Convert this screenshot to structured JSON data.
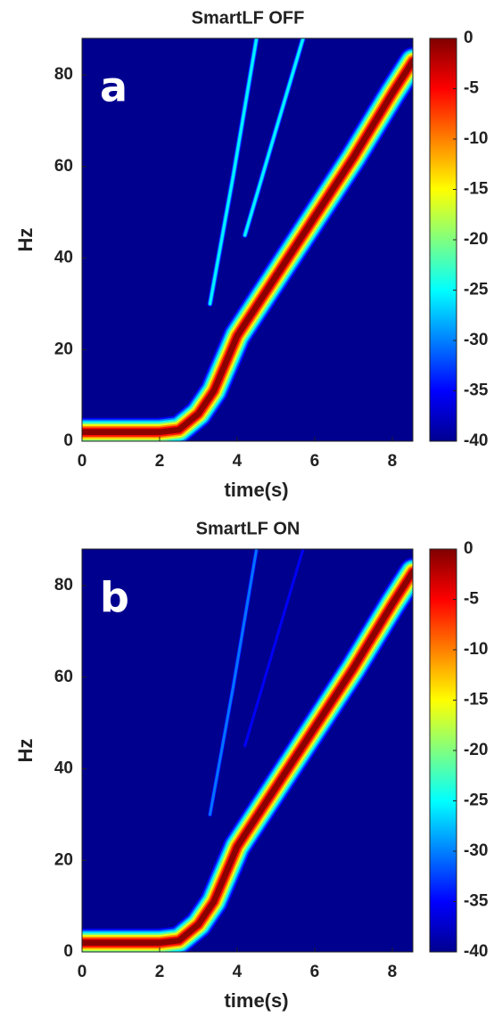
{
  "chart_data": [
    {
      "type": "spectrogram",
      "title": "SmartLF OFF",
      "panel_label": "a",
      "xlabel": "time(s)",
      "ylabel": "Hz",
      "xlim": [
        0,
        8.53
      ],
      "ylim": [
        0,
        88
      ],
      "xticks": [
        0,
        2,
        4,
        6,
        8
      ],
      "yticks": [
        0,
        20,
        40,
        60,
        80
      ],
      "clim": [
        -40,
        0
      ],
      "cticks": [
        0,
        -5,
        -10,
        -15,
        -20,
        -25,
        -30,
        -35,
        -40
      ],
      "colormap": [
        "#00008f",
        "#0000ff",
        "#0080ff",
        "#00ffff",
        "#80ff80",
        "#ffff00",
        "#ff8000",
        "#ff0000",
        "#800000"
      ],
      "series": [
        {
          "x": [
            0,
            1,
            2,
            2.5,
            3,
            3.4,
            4,
            5,
            6,
            7,
            8,
            8.53
          ],
          "values": [
            2,
            2,
            2,
            2.5,
            6,
            11,
            23,
            36,
            49,
            62,
            76,
            83
          ],
          "level": 0
        },
        {
          "x": [
            3.3,
            3.9,
            4.5
          ],
          "values": [
            30,
            58,
            88
          ],
          "level": -25
        },
        {
          "x": [
            4.2,
            5.0,
            5.7
          ],
          "values": [
            45,
            68,
            88
          ],
          "level": -27
        }
      ]
    },
    {
      "type": "spectrogram",
      "title": "SmartLF ON",
      "panel_label": "b",
      "xlabel": "time(s)",
      "ylabel": "Hz",
      "xlim": [
        0,
        8.53
      ],
      "ylim": [
        0,
        88
      ],
      "xticks": [
        0,
        2,
        4,
        6,
        8
      ],
      "yticks": [
        0,
        20,
        40,
        60,
        80
      ],
      "clim": [
        -40,
        0
      ],
      "cticks": [
        0,
        -5,
        -10,
        -15,
        -20,
        -25,
        -30,
        -35,
        -40
      ],
      "colormap": [
        "#00008f",
        "#0000ff",
        "#0080ff",
        "#00ffff",
        "#80ff80",
        "#ffff00",
        "#ff8000",
        "#ff0000",
        "#800000"
      ],
      "series": [
        {
          "x": [
            0,
            1,
            2,
            2.5,
            3,
            3.4,
            4,
            5,
            6,
            7,
            8,
            8.53
          ],
          "values": [
            2,
            2,
            2,
            2.5,
            6,
            11,
            23,
            36,
            49,
            62,
            76,
            83
          ],
          "level": 0
        },
        {
          "x": [
            3.3,
            3.9,
            4.5
          ],
          "values": [
            30,
            58,
            88
          ],
          "level": -31
        },
        {
          "x": [
            4.2,
            5.0,
            5.7
          ],
          "values": [
            45,
            68,
            88
          ],
          "level": -33
        }
      ]
    }
  ]
}
